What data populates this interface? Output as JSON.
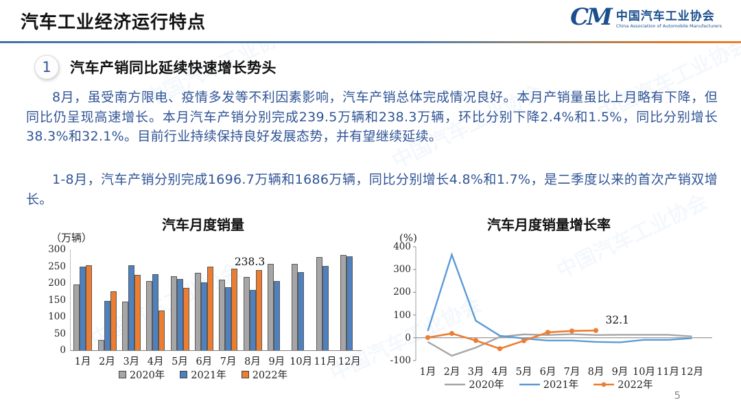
{
  "page": {
    "title": "汽车工业经济运行特点",
    "page_number": "5",
    "watermark": "中国汽车工业协会"
  },
  "logo": {
    "monogram": "CM",
    "name_cn": "中国汽车工业协会",
    "name_en": "China Association of Automobile Manufacturers",
    "color": "#1b4e8e"
  },
  "section": {
    "number": "1",
    "heading": "汽车产销同比延续快速增长势头"
  },
  "paragraphs": {
    "p1": "8月，虽受南方限电、疫情多发等不利因素影响，汽车产销总体完成情况良好。本月产销量虽比上月略有下降，但同比仍呈现高速增长。本月汽车产销分别完成239.5万辆和238.3万辆，环比分别下降2.4%和1.5%，同比分别增长38.3%和32.1%。目前行业持续保持良好发展态势，并有望继续延续。",
    "p2": "1-8月，汽车产销分别完成1696.7万辆和1686万辆，同比分别增长4.8%和1.7%，是二季度以来的首次产销双增长。"
  },
  "colors": {
    "accent_text_blue": "#2f5496",
    "series_gray": "#a6a6a6",
    "series_blue_bar": "#4e81bd",
    "series_blue_line": "#5b9bd5",
    "series_orange": "#ed7d31",
    "divider_blue": "#4472a8",
    "divider_orange": "#ed7d31"
  },
  "chart_data": [
    {
      "type": "bar",
      "title": "汽车月度销量",
      "unit_label": "（万辆）",
      "categories": [
        "1月",
        "2月",
        "3月",
        "4月",
        "5月",
        "6月",
        "7月",
        "8月",
        "9月",
        "10月",
        "11月",
        "12月"
      ],
      "series": [
        {
          "name": "2020年",
          "color": "#a6a6a6",
          "values": [
            195,
            31,
            144,
            207,
            220,
            230,
            211,
            219,
            257,
            258,
            277,
            283
          ]
        },
        {
          "name": "2021年",
          "color": "#4e81bd",
          "values": [
            250,
            146,
            253,
            226,
            213,
            202,
            187,
            180,
            207,
            233,
            252,
            279
          ]
        },
        {
          "name": "2022年",
          "color": "#ed7d31",
          "values": [
            254,
            176,
            224,
            118,
            186,
            250,
            242,
            238.3,
            null,
            null,
            null,
            null
          ]
        }
      ],
      "ylim": [
        0,
        300
      ],
      "ytick_step": 50,
      "grid": false,
      "legend_position": "bottom",
      "annotation": {
        "text": "238.3",
        "category_index": 7,
        "series_index": 2
      }
    },
    {
      "type": "line",
      "title": "汽车月度销量增长率",
      "unit_label": "(%)",
      "categories": [
        "1月",
        "2月",
        "3月",
        "4月",
        "5月",
        "6月",
        "7月",
        "8月",
        "9月",
        "10月",
        "11月",
        "12月"
      ],
      "series": [
        {
          "name": "2020年",
          "color": "#a6a6a6",
          "marker": false,
          "values": [
            -18,
            -79,
            -43,
            4,
            15,
            12,
            16,
            12,
            13,
            13,
            13,
            6
          ]
        },
        {
          "name": "2021年",
          "color": "#5b9bd5",
          "marker": false,
          "values": [
            30,
            365,
            75,
            9,
            -3,
            -12,
            -12,
            -18,
            -20,
            -9,
            -9,
            -2
          ]
        },
        {
          "name": "2022年",
          "color": "#ed7d31",
          "marker": true,
          "values": [
            1,
            19,
            -12,
            -48,
            -13,
            24,
            30,
            32.1
          ]
        }
      ],
      "ylim": [
        -100,
        400
      ],
      "ytick_step": 100,
      "grid": false,
      "legend_position": "bottom",
      "annotation": {
        "text": "32.1",
        "category_index": 7,
        "series_index": 2
      }
    }
  ]
}
